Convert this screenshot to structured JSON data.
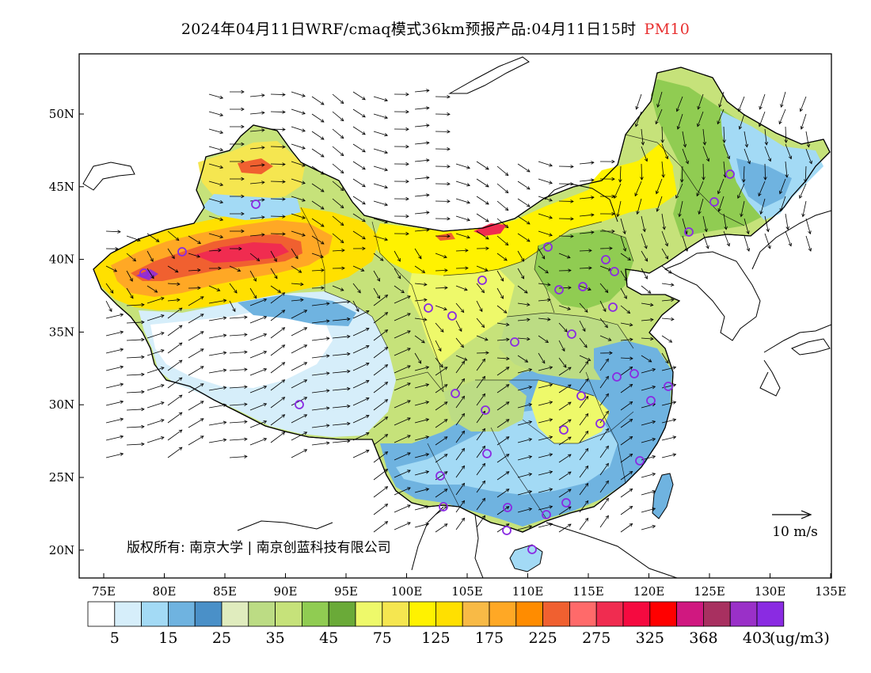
{
  "title": {
    "main": "2024年04月11日WRF/cmaq模式36km预报产品:04月11日15时",
    "variable": "PM10",
    "variable_color": "#e83030"
  },
  "map": {
    "lon_labels": [
      "75E",
      "80E",
      "85E",
      "90E",
      "95E",
      "100E",
      "105E",
      "110E",
      "115E",
      "120E",
      "125E",
      "130E",
      "135E"
    ],
    "lat_labels": [
      "50N",
      "45N",
      "40N",
      "35N",
      "30N",
      "25N",
      "20N"
    ],
    "copyright": "版权所有: 南京大学 | 南京创蓝科技有限公司",
    "wind_reference": "10 m/s"
  },
  "legend": {
    "colors": [
      "#ffffff",
      "#d6eefa",
      "#a3daf5",
      "#6fb3e0",
      "#4a90c8",
      "#e0ecbe",
      "#bcdc84",
      "#c6e27a",
      "#90cc52",
      "#6aaa38",
      "#eef96a",
      "#f5e650",
      "#fff200",
      "#ffe000",
      "#f8ba46",
      "#ffa825",
      "#ff8c00",
      "#f06030",
      "#ff6a6a",
      "#f02c50",
      "#f50a40",
      "#ff0000",
      "#d01880",
      "#a83060",
      "#9a30c8",
      "#8a2be2"
    ],
    "labels": [
      "5",
      "15",
      "25",
      "35",
      "45",
      "75",
      "125",
      "175",
      "225",
      "275",
      "325",
      "368",
      "403"
    ],
    "unit": "(ug/m3)"
  },
  "cities": [
    "marker",
    "marker",
    "marker",
    "marker",
    "marker",
    "marker",
    "marker",
    "marker",
    "marker",
    "marker",
    "marker",
    "marker",
    "marker",
    "marker",
    "marker",
    "marker",
    "marker",
    "marker",
    "marker",
    "marker",
    "marker",
    "marker",
    "marker",
    "marker",
    "marker",
    "marker",
    "marker",
    "marker",
    "marker",
    "marker",
    "marker",
    "marker",
    "marker",
    "marker",
    "marker",
    "marker"
  ],
  "colors": {
    "city_marker": "#8a2be2",
    "wind_arrow": "#000000",
    "coastline": "#000000"
  }
}
